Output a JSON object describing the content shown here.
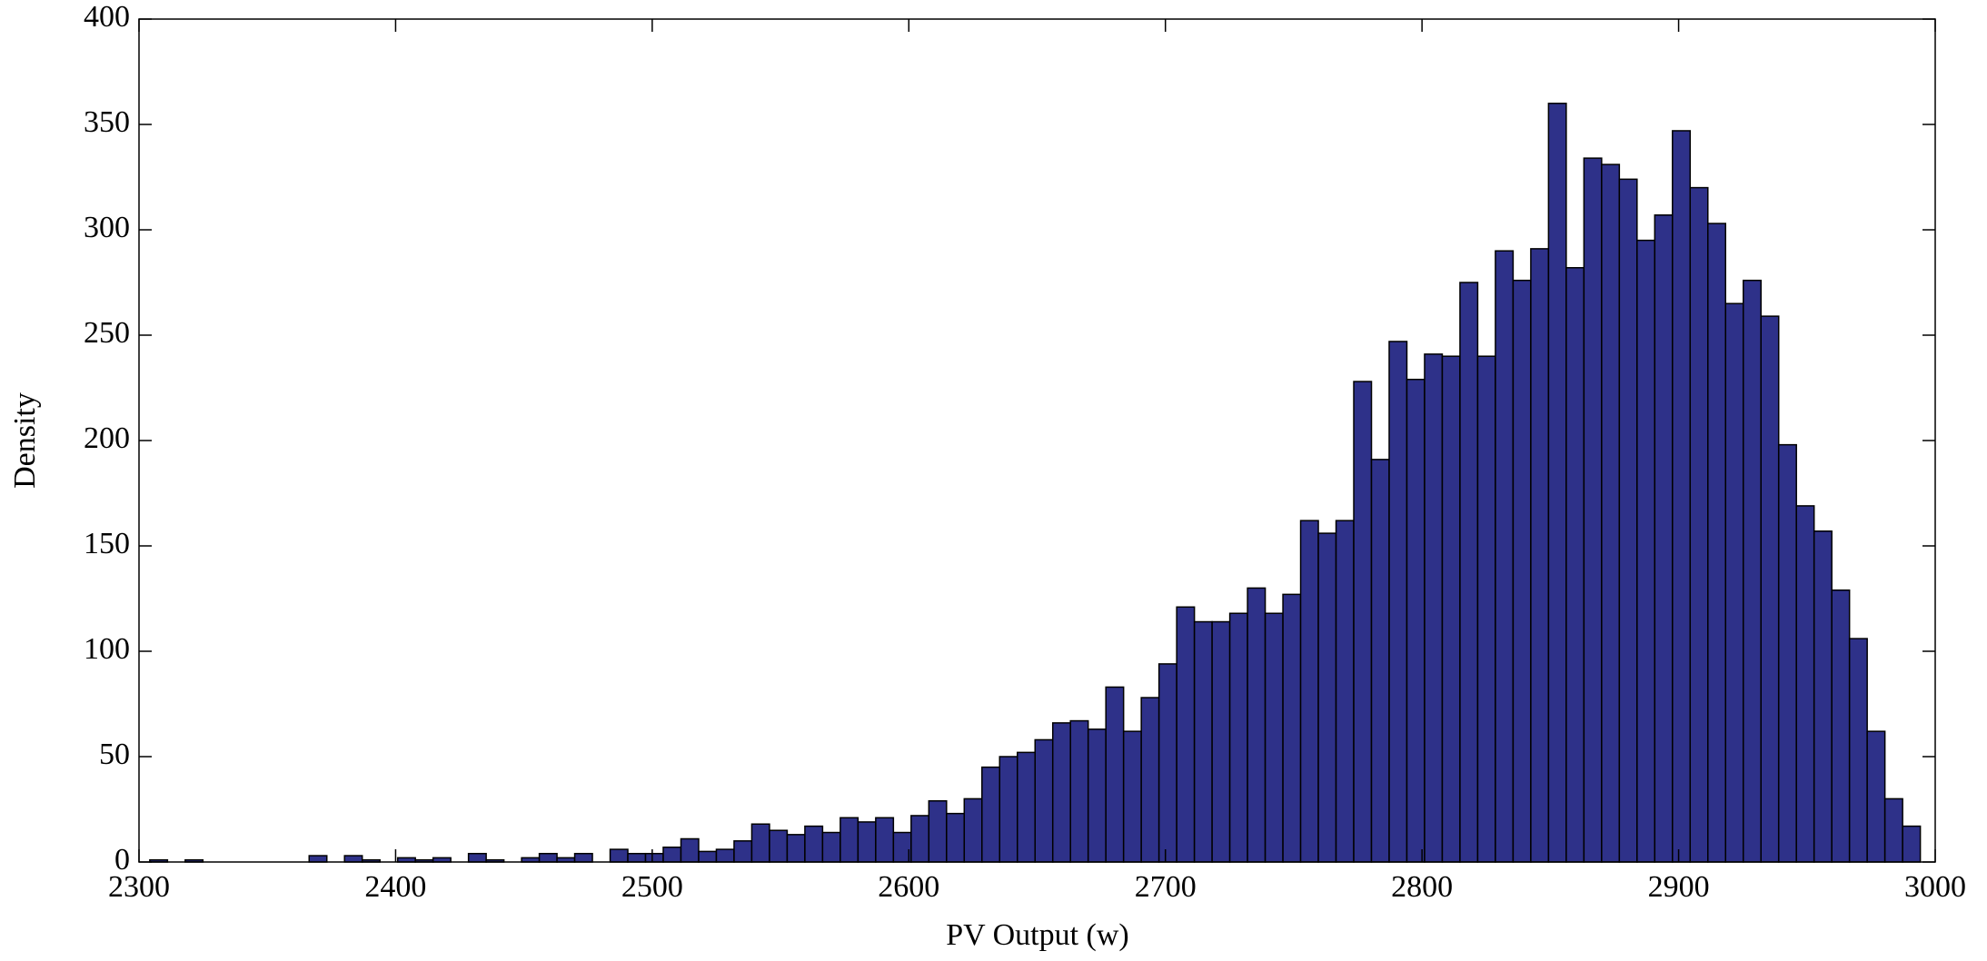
{
  "chart_data": {
    "type": "histogram",
    "x_label": "PV Output (w)",
    "y_label": "Density",
    "color": "#2e3189",
    "edgecolor": "#000000",
    "bins": [
      2304.2,
      2311.1,
      2318.0,
      2324.9,
      2331.8,
      2338.7,
      2345.6,
      2352.5,
      2359.4,
      2366.3,
      2373.2,
      2380.1,
      2387.0,
      2393.9,
      2400.8,
      2407.7,
      2414.6,
      2421.5,
      2428.4,
      2435.3,
      2442.2,
      2449.1,
      2456.0,
      2462.9,
      2469.8,
      2476.7,
      2483.6,
      2490.5,
      2497.4,
      2504.3,
      2511.2,
      2518.1,
      2525.0,
      2531.9,
      2538.8,
      2545.7,
      2552.6,
      2559.5,
      2566.4,
      2573.3,
      2580.2,
      2587.1,
      2594.0,
      2600.9,
      2607.8,
      2614.7,
      2621.6,
      2628.5,
      2635.4,
      2642.3,
      2649.2,
      2656.1,
      2663.0,
      2669.9,
      2676.8,
      2683.7,
      2690.6,
      2697.5,
      2704.4,
      2711.3,
      2718.2,
      2725.1,
      2732.0,
      2738.9,
      2745.8,
      2752.7,
      2759.6,
      2766.5,
      2773.4,
      2780.3,
      2787.2,
      2794.1,
      2801.0,
      2807.9,
      2814.8,
      2821.7,
      2828.6,
      2835.5,
      2842.4,
      2849.3,
      2856.2,
      2863.1,
      2870.0,
      2876.9,
      2883.8,
      2890.7,
      2897.6,
      2904.5,
      2911.4,
      2918.3,
      2925.2,
      2932.1,
      2939.0,
      2945.9,
      2952.8,
      2959.7,
      2966.6,
      2973.5,
      2980.4,
      2987.3,
      2994.2
    ],
    "values": [
      1,
      0,
      1,
      0,
      0,
      0,
      0,
      0,
      0,
      3,
      0,
      3,
      1,
      0,
      2,
      1,
      2,
      0,
      4,
      1,
      0,
      2,
      4,
      2,
      4,
      0,
      6,
      4,
      4,
      7,
      11,
      5,
      6,
      10,
      18,
      15,
      13,
      17,
      14,
      21,
      19,
      21,
      14,
      22,
      29,
      23,
      30,
      45,
      50,
      52,
      58,
      66,
      67,
      63,
      83,
      62,
      78,
      94,
      121,
      114,
      114,
      118,
      130,
      118,
      127,
      162,
      156,
      162,
      228,
      191,
      247,
      229,
      241,
      240,
      275,
      240,
      290,
      276,
      291,
      360,
      282,
      334,
      331,
      324,
      295,
      307,
      347,
      320,
      303,
      265,
      276,
      259,
      198,
      169,
      157,
      129,
      106,
      62,
      30,
      17
    ],
    "xlim": [
      2300,
      3000
    ],
    "ylim": [
      0,
      400
    ],
    "xticks": [
      2300,
      2400,
      2500,
      2600,
      2700,
      2800,
      2900,
      3000
    ],
    "yticks": [
      0,
      50,
      100,
      150,
      200,
      250,
      300,
      350,
      400
    ]
  }
}
